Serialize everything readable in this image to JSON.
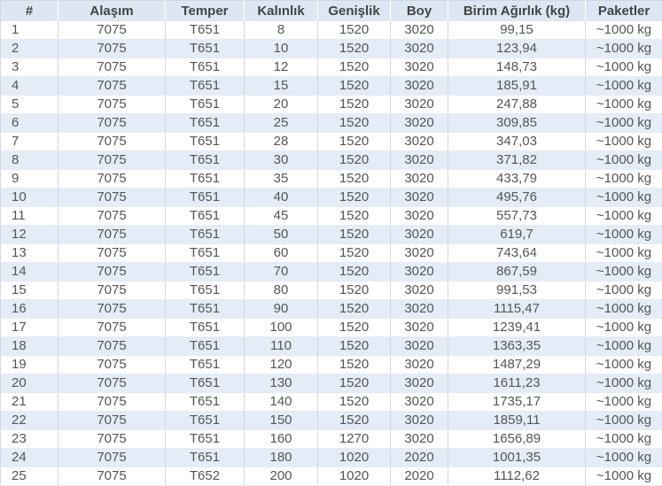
{
  "table": {
    "headers": [
      "#",
      "Alaşım",
      "Temper",
      "Kalınlık",
      "Genişlik",
      "Boy",
      "Birim Ağırlık (kg)",
      "Paketler"
    ],
    "rows": [
      [
        "1",
        "7075",
        "T651",
        "8",
        "1520",
        "3020",
        "99,15",
        "~1000 kg"
      ],
      [
        "2",
        "7075",
        "T651",
        "10",
        "1520",
        "3020",
        "123,94",
        "~1000 kg"
      ],
      [
        "3",
        "7075",
        "T651",
        "12",
        "1520",
        "3020",
        "148,73",
        "~1000 kg"
      ],
      [
        "4",
        "7075",
        "T651",
        "15",
        "1520",
        "3020",
        "185,91",
        "~1000 kg"
      ],
      [
        "5",
        "7075",
        "T651",
        "20",
        "1520",
        "3020",
        "247,88",
        "~1000 kg"
      ],
      [
        "6",
        "7075",
        "T651",
        "25",
        "1520",
        "3020",
        "309,85",
        "~1000 kg"
      ],
      [
        "7",
        "7075",
        "T651",
        "28",
        "1520",
        "3020",
        "347,03",
        "~1000 kg"
      ],
      [
        "8",
        "7075",
        "T651",
        "30",
        "1520",
        "3020",
        "371,82",
        "~1000 kg"
      ],
      [
        "9",
        "7075",
        "T651",
        "35",
        "1520",
        "3020",
        "433,79",
        "~1000 kg"
      ],
      [
        "10",
        "7075",
        "T651",
        "40",
        "1520",
        "3020",
        "495,76",
        "~1000 kg"
      ],
      [
        "11",
        "7075",
        "T651",
        "45",
        "1520",
        "3020",
        "557,73",
        "~1000 kg"
      ],
      [
        "12",
        "7075",
        "T651",
        "50",
        "1520",
        "3020",
        "619,7",
        "~1000 kg"
      ],
      [
        "13",
        "7075",
        "T651",
        "60",
        "1520",
        "3020",
        "743,64",
        "~1000 kg"
      ],
      [
        "14",
        "7075",
        "T651",
        "70",
        "1520",
        "3020",
        "867,59",
        "~1000 kg"
      ],
      [
        "15",
        "7075",
        "T651",
        "80",
        "1520",
        "3020",
        "991,53",
        "~1000 kg"
      ],
      [
        "16",
        "7075",
        "T651",
        "90",
        "1520",
        "3020",
        "1115,47",
        "~1000 kg"
      ],
      [
        "17",
        "7075",
        "T651",
        "100",
        "1520",
        "3020",
        "1239,41",
        "~1000 kg"
      ],
      [
        "18",
        "7075",
        "T651",
        "110",
        "1520",
        "3020",
        "1363,35",
        "~1000 kg"
      ],
      [
        "19",
        "7075",
        "T651",
        "120",
        "1520",
        "3020",
        "1487,29",
        "~1000 kg"
      ],
      [
        "20",
        "7075",
        "T651",
        "130",
        "1520",
        "3020",
        "1611,23",
        "~1000 kg"
      ],
      [
        "21",
        "7075",
        "T651",
        "140",
        "1520",
        "3020",
        "1735,17",
        "~1000 kg"
      ],
      [
        "22",
        "7075",
        "T651",
        "150",
        "1520",
        "3020",
        "1859,11",
        "~1000 kg"
      ],
      [
        "23",
        "7075",
        "T651",
        "160",
        "1270",
        "3020",
        "1656,89",
        "~1000 kg"
      ],
      [
        "24",
        "7075",
        "T651",
        "180",
        "1020",
        "2020",
        "1001,35",
        "~1000 kg"
      ],
      [
        "25",
        "7075",
        "T652",
        "200",
        "1020",
        "2020",
        "1112,62",
        "~1000 kg"
      ]
    ]
  }
}
